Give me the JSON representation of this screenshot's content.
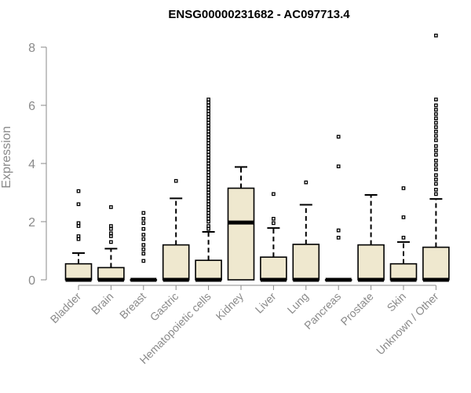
{
  "chart_data": {
    "type": "box",
    "title": "ENSG00000231682 - AC097713.4",
    "xlabel": "",
    "ylabel": "Expression",
    "ylim": [
      0,
      8.4
    ],
    "yticks": [
      0,
      2,
      4,
      6,
      8
    ],
    "grid": false,
    "legend": "none",
    "box_fill": "#efe8cf",
    "categories": [
      "Bladder",
      "Brain",
      "Breast",
      "Gastric",
      "Hematopoietic cells",
      "Kidney",
      "Liver",
      "Lung",
      "Pancreas",
      "Prostate",
      "Skin",
      "Unknown / Other"
    ],
    "boxes": [
      {
        "min": 0,
        "q1": 0,
        "median": 0,
        "q3": 0.55,
        "max": 0.92,
        "outliers": [
          1.4,
          1.5,
          1.85,
          1.95,
          2.6,
          3.05
        ]
      },
      {
        "min": 0,
        "q1": 0,
        "median": 0,
        "q3": 0.42,
        "max": 1.07,
        "outliers": [
          1.3,
          1.5,
          1.6,
          1.75,
          1.85,
          2.5
        ]
      },
      {
        "min": 0,
        "q1": 0,
        "median": 0,
        "q3": 0,
        "max": 0,
        "outliers": [
          0.65,
          0.9,
          1.05,
          1.2,
          1.4,
          1.55,
          1.75,
          1.95,
          2.1,
          2.3
        ]
      },
      {
        "min": 0,
        "q1": 0,
        "median": 0,
        "q3": 1.2,
        "max": 2.8,
        "outliers": [
          3.4
        ]
      },
      {
        "min": 0,
        "q1": 0,
        "median": 0,
        "q3": 0.67,
        "max": 1.65,
        "outliers": [
          1.75,
          1.85,
          2.0,
          2.1,
          2.2,
          2.3,
          2.4,
          2.5,
          2.6,
          2.7,
          2.8,
          2.9,
          3.0,
          3.1,
          3.2,
          3.3,
          3.4,
          3.5,
          3.6,
          3.7,
          3.8,
          3.9,
          4.0,
          4.1,
          4.2,
          4.3,
          4.4,
          4.5,
          4.6,
          4.7,
          4.8,
          4.9,
          5.0,
          5.1,
          5.2,
          5.3,
          5.4,
          5.5,
          5.6,
          5.7,
          5.8,
          5.9,
          6.0,
          6.1,
          6.2
        ]
      },
      {
        "min": 0,
        "q1": 0,
        "median": 1.97,
        "q3": 3.15,
        "max": 3.88,
        "outliers": []
      },
      {
        "min": 0,
        "q1": 0,
        "median": 0,
        "q3": 0.78,
        "max": 1.78,
        "outliers": [
          1.95,
          2.1,
          2.95
        ]
      },
      {
        "min": 0,
        "q1": 0,
        "median": 0,
        "q3": 1.22,
        "max": 2.58,
        "outliers": [
          3.35
        ]
      },
      {
        "min": 0,
        "q1": 0,
        "median": 0,
        "q3": 0,
        "max": 0,
        "outliers": [
          1.45,
          1.7,
          3.9,
          4.92
        ]
      },
      {
        "min": 0,
        "q1": 0,
        "median": 0,
        "q3": 1.2,
        "max": 2.92,
        "outliers": []
      },
      {
        "min": 0,
        "q1": 0,
        "median": 0,
        "q3": 0.55,
        "max": 1.3,
        "outliers": [
          1.45,
          2.15,
          3.15
        ]
      },
      {
        "min": 0,
        "q1": 0,
        "median": 0,
        "q3": 1.12,
        "max": 2.78,
        "outliers": [
          2.95,
          3.1,
          3.3,
          3.45,
          3.6,
          3.8,
          3.95,
          4.1,
          4.3,
          4.45,
          4.6,
          4.8,
          4.95,
          5.1,
          5.25,
          5.4,
          5.55,
          5.7,
          5.85,
          6.0,
          6.2,
          8.4
        ]
      }
    ]
  }
}
